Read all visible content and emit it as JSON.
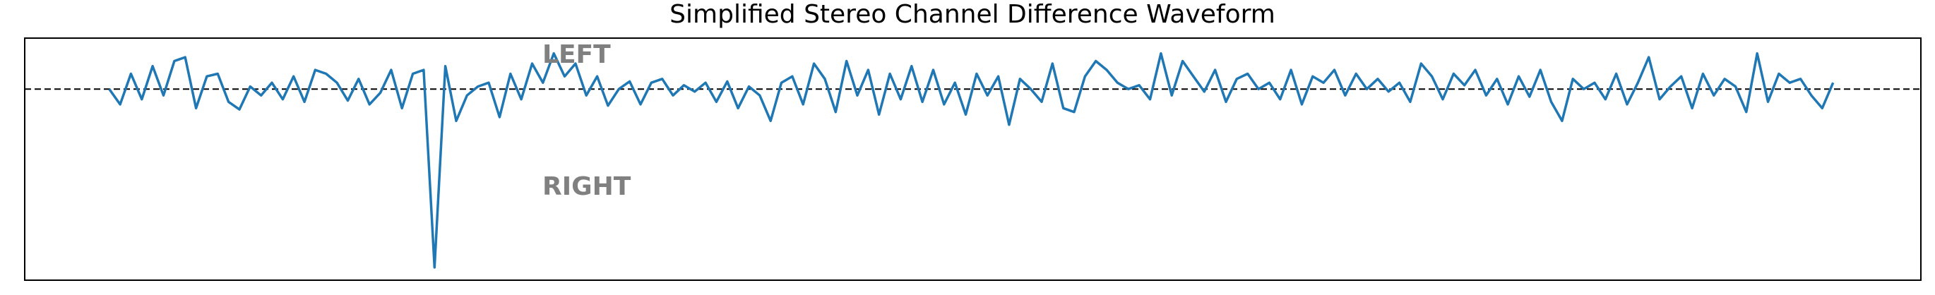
{
  "chart_data": {
    "type": "line",
    "title": "Simplified Stereo Channel Difference Waveform",
    "annotations": [
      "LEFT",
      "RIGHT"
    ],
    "color": "#1f77b4",
    "baseline": 0,
    "xlim": [
      -7.8,
      167.1
    ],
    "ylim": [
      -1.5,
      0.4
    ],
    "values": [
      0.0,
      -0.12,
      0.12,
      -0.08,
      0.18,
      -0.05,
      0.22,
      0.25,
      -0.15,
      0.1,
      0.12,
      -0.1,
      -0.16,
      0.02,
      -0.05,
      0.05,
      -0.08,
      0.1,
      -0.1,
      0.15,
      0.12,
      0.05,
      -0.09,
      0.08,
      -0.12,
      -0.03,
      0.15,
      -0.15,
      0.12,
      0.15,
      -1.4,
      0.18,
      -0.25,
      -0.05,
      0.02,
      0.05,
      -0.22,
      0.12,
      -0.08,
      0.2,
      0.05,
      0.28,
      0.1,
      0.2,
      -0.05,
      0.1,
      -0.13,
      0.0,
      0.06,
      -0.12,
      0.05,
      0.08,
      -0.05,
      0.03,
      -0.02,
      0.05,
      -0.1,
      0.06,
      -0.15,
      0.02,
      -0.05,
      -0.25,
      0.05,
      0.1,
      -0.12,
      0.2,
      0.08,
      -0.18,
      0.22,
      -0.05,
      0.15,
      -0.2,
      0.12,
      -0.08,
      0.18,
      -0.1,
      0.15,
      -0.12,
      0.05,
      -0.2,
      0.12,
      -0.05,
      0.1,
      -0.28,
      0.08,
      0.0,
      -0.1,
      0.2,
      -0.15,
      -0.18,
      0.1,
      0.22,
      0.15,
      0.05,
      0.0,
      0.03,
      -0.08,
      0.28,
      -0.05,
      0.22,
      0.1,
      -0.02,
      0.15,
      -0.1,
      0.08,
      0.12,
      0.0,
      0.05,
      -0.08,
      0.15,
      -0.12,
      0.1,
      0.05,
      0.15,
      -0.05,
      0.12,
      0.0,
      0.08,
      -0.02,
      0.05,
      -0.1,
      0.2,
      0.1,
      -0.08,
      0.12,
      0.03,
      0.15,
      -0.05,
      0.08,
      -0.12,
      0.1,
      -0.06,
      0.15,
      -0.1,
      -0.25,
      0.08,
      0.0,
      0.05,
      -0.08,
      0.12,
      -0.12,
      0.05,
      0.25,
      -0.08,
      0.02,
      0.1,
      -0.15,
      0.12,
      -0.05,
      0.08,
      0.02,
      -0.18,
      0.28,
      -0.1,
      0.12,
      0.05,
      0.08,
      -0.05,
      -0.15,
      0.05
    ]
  }
}
